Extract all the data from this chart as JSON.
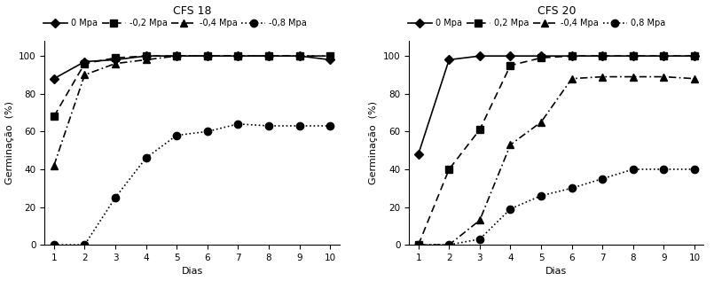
{
  "csf18": {
    "title": "CFS 18",
    "series": [
      {
        "label": "0 Mpa",
        "x": [
          1,
          2,
          3,
          4,
          5,
          6,
          7,
          8,
          9,
          10
        ],
        "y": [
          88,
          97,
          98,
          100,
          100,
          100,
          100,
          100,
          100,
          98
        ],
        "linestyle": "solid",
        "marker": "D",
        "markersize": 5
      },
      {
        "label": "-0,2 Mpa",
        "x": [
          1,
          2,
          3,
          4,
          5,
          6,
          7,
          8,
          9,
          10
        ],
        "y": [
          68,
          96,
          99,
          100,
          100,
          100,
          100,
          100,
          100,
          100
        ],
        "linestyle": "dash",
        "marker": "s",
        "markersize": 6
      },
      {
        "label": "-0,4 Mpa",
        "x": [
          1,
          2,
          3,
          4,
          5,
          6,
          7,
          8,
          9,
          10
        ],
        "y": [
          42,
          90,
          96,
          98,
          100,
          100,
          100,
          100,
          100,
          100
        ],
        "linestyle": "dashdot",
        "marker": "^",
        "markersize": 6
      },
      {
        "label": "-0,8 Mpa",
        "x": [
          1,
          2,
          3,
          4,
          5,
          6,
          7,
          8,
          9,
          10
        ],
        "y": [
          0,
          0,
          25,
          46,
          58,
          60,
          64,
          63,
          63,
          63
        ],
        "linestyle": "dot",
        "marker": "o",
        "markersize": 6
      }
    ]
  },
  "csf20": {
    "title": "CFS 20",
    "series": [
      {
        "label": "0 Mpa",
        "x": [
          1,
          2,
          3,
          4,
          5,
          6,
          7,
          8,
          9,
          10
        ],
        "y": [
          48,
          98,
          100,
          100,
          100,
          100,
          100,
          100,
          100,
          100
        ],
        "linestyle": "solid",
        "marker": "D",
        "markersize": 5
      },
      {
        "label": "0,2 Mpa",
        "x": [
          1,
          2,
          3,
          4,
          5,
          6,
          7,
          8,
          9,
          10
        ],
        "y": [
          0,
          40,
          61,
          95,
          99,
          100,
          100,
          100,
          100,
          100
        ],
        "linestyle": "dash",
        "marker": "s",
        "markersize": 6
      },
      {
        "label": "-0,4 Mpa",
        "x": [
          1,
          2,
          3,
          4,
          5,
          6,
          7,
          8,
          9,
          10
        ],
        "y": [
          0,
          0,
          13,
          53,
          65,
          88,
          89,
          89,
          89,
          88
        ],
        "linestyle": "dashdot",
        "marker": "^",
        "markersize": 6
      },
      {
        "label": "0,8 Mpa",
        "x": [
          1,
          2,
          3,
          4,
          5,
          6,
          7,
          8,
          9,
          10
        ],
        "y": [
          0,
          0,
          3,
          19,
          26,
          30,
          35,
          40,
          40,
          40
        ],
        "linestyle": "dot",
        "marker": "o",
        "markersize": 6
      }
    ]
  },
  "ylabel": "Germinação  (%)",
  "xlabel": "Dias",
  "ylim": [
    0,
    108
  ],
  "yticks": [
    0,
    20,
    40,
    60,
    80,
    100
  ],
  "xticks": [
    1,
    2,
    3,
    4,
    5,
    6,
    7,
    8,
    9,
    10
  ],
  "color": "black",
  "linewidth": 1.2,
  "legend_fontsize": 7.0,
  "title_fontsize": 9,
  "axis_fontsize": 8,
  "tick_fontsize": 7.5
}
